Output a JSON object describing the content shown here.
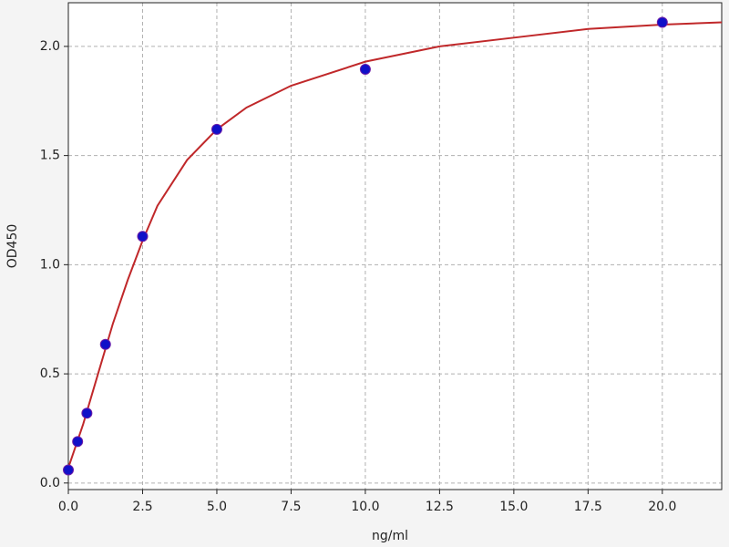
{
  "chart_data": {
    "type": "scatter",
    "x_label": "ng/ml",
    "y_label": "OD450",
    "points": {
      "color": "#1010c8",
      "edge": "#6a1aa8",
      "x": [
        0,
        0.3125,
        0.625,
        1.25,
        2.5,
        5,
        10,
        20
      ],
      "values": [
        0.06,
        0.19,
        0.32,
        0.635,
        1.13,
        1.62,
        1.895,
        2.11
      ]
    },
    "fit": {
      "color": "#c0282a",
      "x": [
        0,
        0.5,
        1,
        1.5,
        2,
        2.5,
        3,
        4,
        5,
        6,
        7.5,
        10,
        12.5,
        15,
        17.5,
        20,
        22
      ],
      "values": [
        0.07,
        0.27,
        0.5,
        0.73,
        0.93,
        1.11,
        1.27,
        1.48,
        1.62,
        1.72,
        1.82,
        1.93,
        2.0,
        2.04,
        2.08,
        2.1,
        2.11
      ]
    },
    "xlim": [
      0,
      22
    ],
    "xticks": [
      {
        "value": 0,
        "label": "0.0"
      },
      {
        "value": 2.5,
        "label": "2.5"
      },
      {
        "value": 5,
        "label": "5.0"
      },
      {
        "value": 7.5,
        "label": "7.5"
      },
      {
        "value": 10,
        "label": "10.0"
      },
      {
        "value": 12.5,
        "label": "12.5"
      },
      {
        "value": 15,
        "label": "15.0"
      },
      {
        "value": 17.5,
        "label": "17.5"
      },
      {
        "value": 20,
        "label": "20.0"
      }
    ],
    "ylim": [
      -0.03,
      2.2
    ],
    "yticks": [
      {
        "value": 0,
        "label": "0.0"
      },
      {
        "value": 0.5,
        "label": "0.5"
      },
      {
        "value": 1,
        "label": "1.0"
      },
      {
        "value": 1.5,
        "label": "1.5"
      },
      {
        "value": 2,
        "label": "2.0"
      }
    ],
    "grid": true
  }
}
